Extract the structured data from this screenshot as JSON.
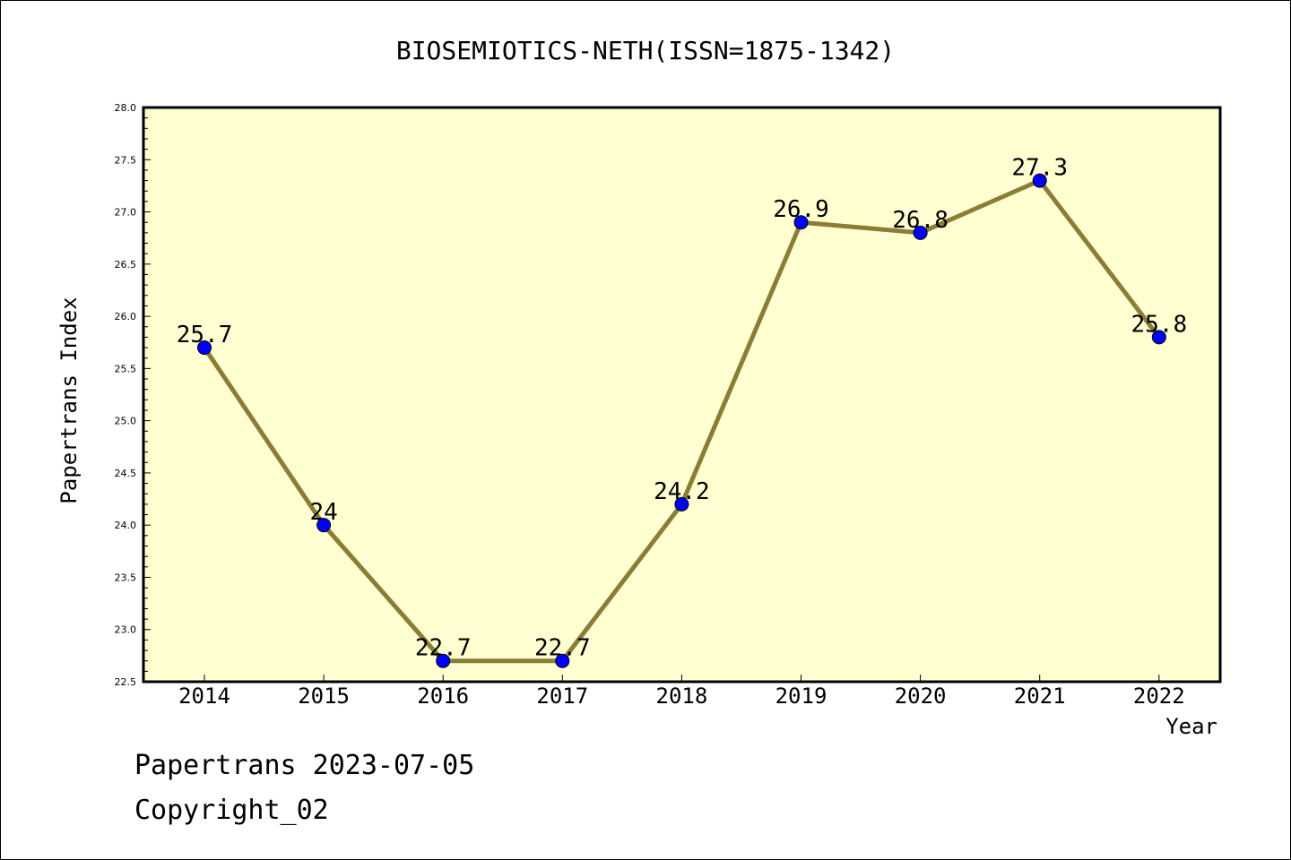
{
  "chart_data": {
    "type": "line",
    "title": "BIOSEMIOTICS-NETH(ISSN=1875-1342)",
    "xlabel": "Year",
    "ylabel": "Papertrans Index",
    "categories": [
      "2014",
      "2015",
      "2016",
      "2017",
      "2018",
      "2019",
      "2020",
      "2021",
      "2022"
    ],
    "series": [
      {
        "values": [
          25.7,
          24.0,
          22.7,
          22.7,
          24.2,
          26.9,
          26.8,
          27.3,
          25.8
        ],
        "labels": [
          "25.7",
          "24",
          "22.7",
          "22.7",
          "24.2",
          "26.9",
          "26.8",
          "27.3",
          "25.8"
        ]
      }
    ],
    "ylim": [
      22.5,
      28.0
    ],
    "yticks": [
      "22.5",
      "23.0",
      "23.5",
      "24.0",
      "24.5",
      "25.0",
      "25.5",
      "26.0",
      "26.5",
      "27.0",
      "27.5",
      "28.0"
    ],
    "grid": false,
    "colors": {
      "plot_background": "#ffffd2",
      "line": "#8b7d35",
      "marker": "#0000ff"
    }
  },
  "footer": {
    "line1": "Papertrans 2023-07-05",
    "line2": "Copyright_02"
  }
}
